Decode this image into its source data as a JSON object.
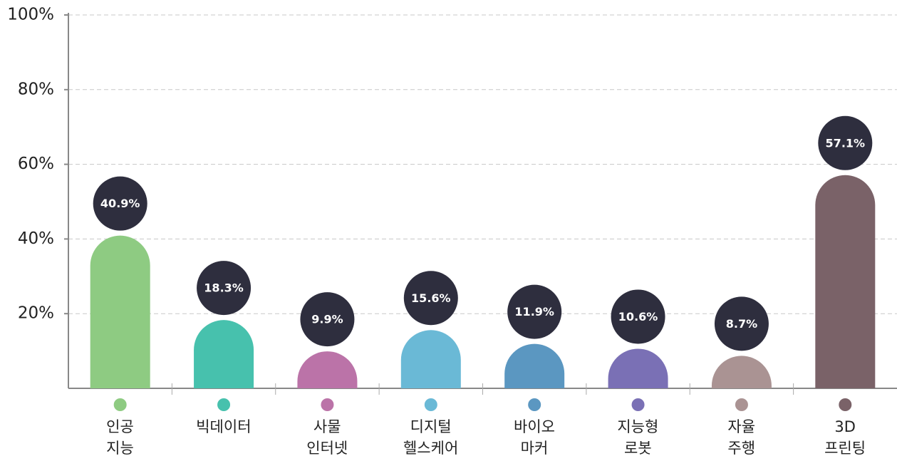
{
  "chart_data": {
    "type": "bar",
    "categories": [
      "인공\n지능",
      "빅데이터",
      "사물\n인터넷",
      "디지털\n헬스케어",
      "바이오\n마커",
      "지능형\n로봇",
      "자율\n주행",
      "3D\n프린팅"
    ],
    "values": [
      40.9,
      18.3,
      9.9,
      15.6,
      11.9,
      10.6,
      8.7,
      57.1
    ],
    "value_labels": [
      "40.9%",
      "18.3%",
      "9.9%",
      "15.6%",
      "11.9%",
      "10.6%",
      "8.7%",
      "57.1%"
    ],
    "colors": [
      "#8ecb82",
      "#47c1ad",
      "#bb73a8",
      "#6ab9d6",
      "#5b97c1",
      "#7a70b5",
      "#aa9393",
      "#7a6268"
    ],
    "ylim": [
      0,
      100
    ],
    "yticks": [
      {
        "value": 20,
        "label": "20%"
      },
      {
        "value": 40,
        "label": "40%"
      },
      {
        "value": 60,
        "label": "60%"
      },
      {
        "value": 80,
        "label": "80%"
      },
      {
        "value": 100,
        "label": "100%"
      }
    ],
    "grid": true
  }
}
